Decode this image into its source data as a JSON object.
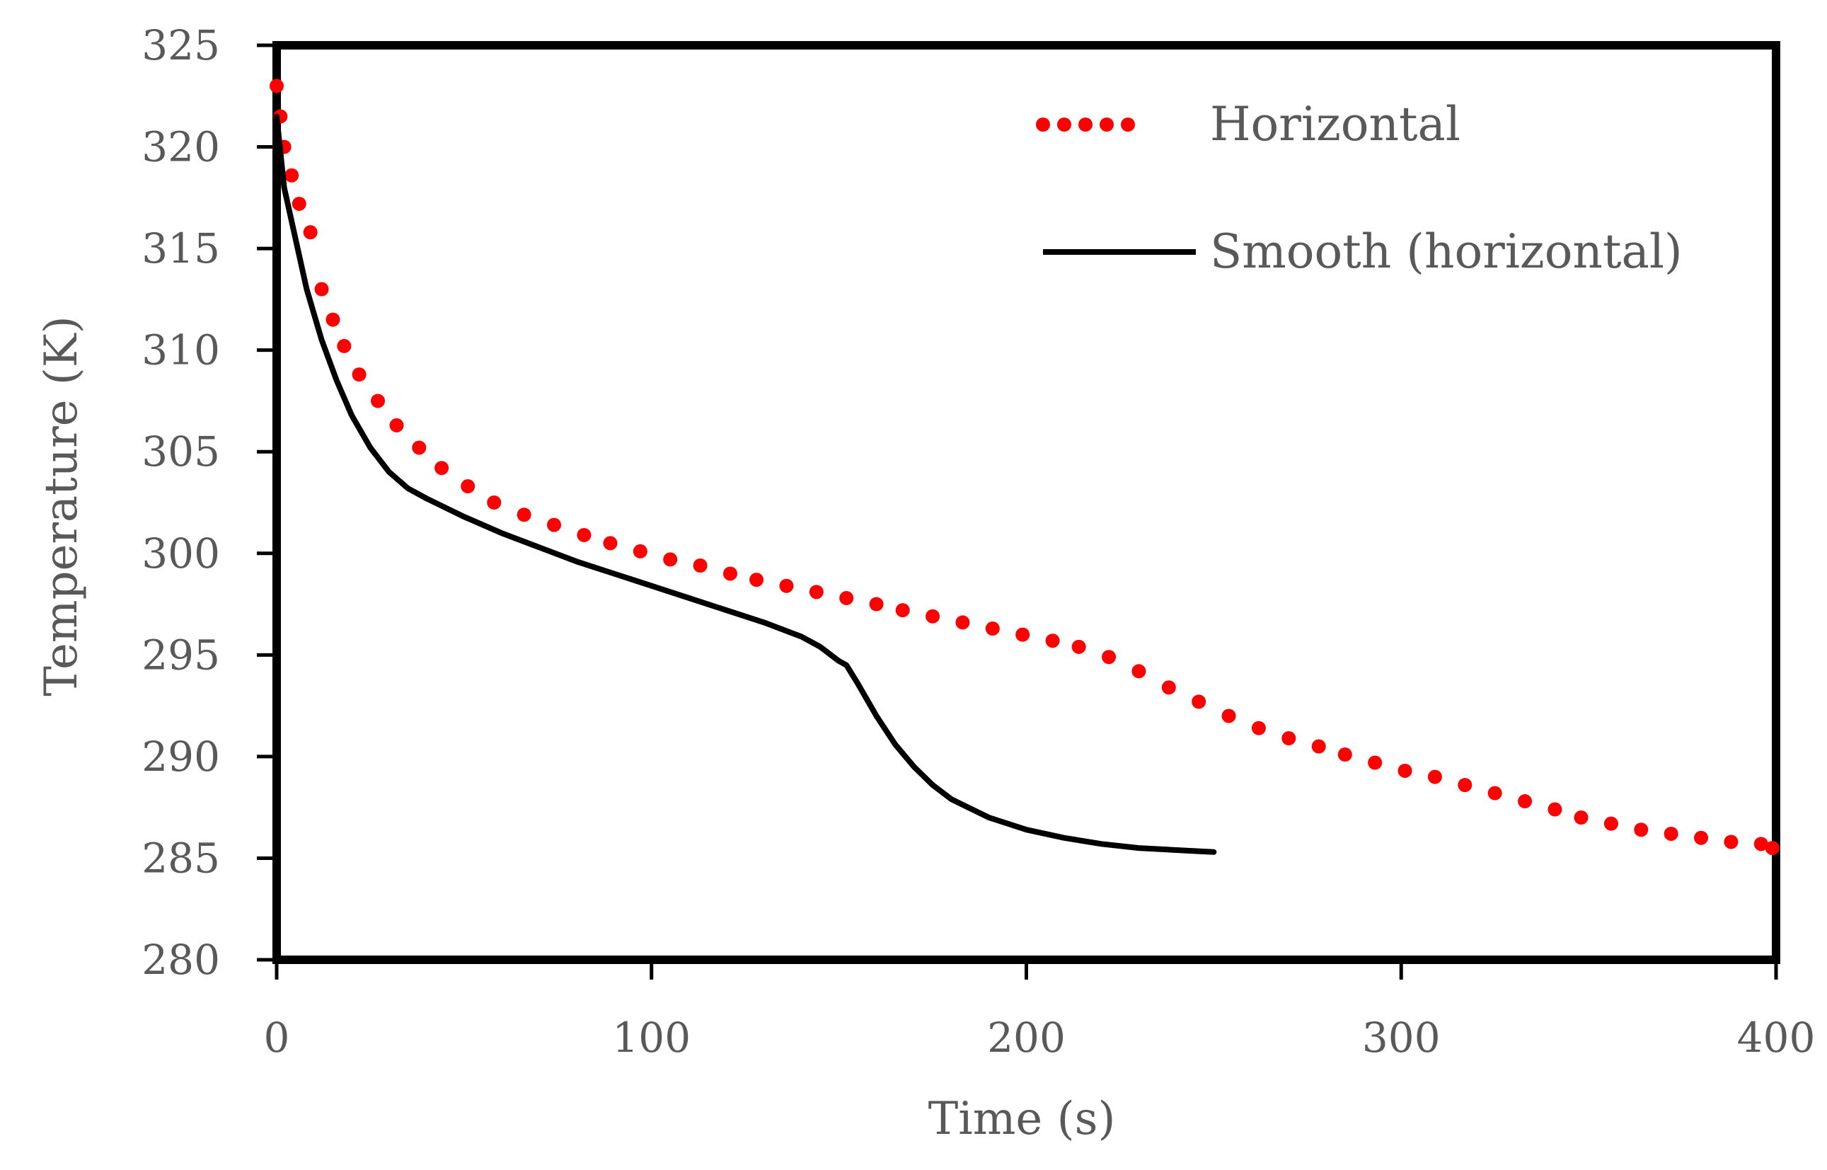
{
  "chart_data": {
    "type": "line",
    "title": "",
    "xlabel": "Time (s)",
    "ylabel": "Temperature (K)",
    "xlim": [
      0,
      400
    ],
    "ylim": [
      280,
      325
    ],
    "xticks": [
      0,
      100,
      200,
      300,
      400
    ],
    "yticks": [
      280,
      285,
      290,
      295,
      300,
      305,
      310,
      315,
      320,
      325
    ],
    "grid": false,
    "legend_position": "top-right",
    "series": [
      {
        "name": "Horizontal",
        "style": "dotted",
        "color": "#ff0000",
        "x": [
          0,
          1,
          2,
          4,
          6,
          9,
          12,
          15,
          18,
          22,
          27,
          32,
          38,
          44,
          51,
          58,
          66,
          74,
          82,
          89,
          97,
          105,
          113,
          121,
          128,
          136,
          144,
          152,
          160,
          167,
          175,
          183,
          191,
          199,
          207,
          214,
          222,
          230,
          238,
          246,
          254,
          262,
          270,
          278,
          285,
          293,
          301,
          309,
          317,
          325,
          333,
          341,
          348,
          356,
          364,
          372,
          380,
          388,
          396,
          399
        ],
        "y": [
          323.0,
          321.5,
          320.0,
          318.6,
          317.2,
          315.8,
          313.0,
          311.5,
          310.2,
          308.8,
          307.5,
          306.3,
          305.2,
          304.2,
          303.3,
          302.5,
          301.9,
          301.4,
          300.9,
          300.5,
          300.1,
          299.7,
          299.4,
          299.0,
          298.7,
          298.4,
          298.1,
          297.8,
          297.5,
          297.2,
          296.9,
          296.6,
          296.3,
          296.0,
          295.7,
          295.4,
          294.9,
          294.2,
          293.4,
          292.7,
          292.0,
          291.4,
          290.9,
          290.5,
          290.1,
          289.7,
          289.3,
          289.0,
          288.6,
          288.2,
          287.8,
          287.4,
          287.0,
          286.7,
          286.4,
          286.2,
          286.0,
          285.8,
          285.7,
          285.5
        ]
      },
      {
        "name": "Smooth (horizontal)",
        "style": "solid",
        "color": "#000000",
        "x": [
          0,
          2,
          5,
          8,
          12,
          16,
          20,
          25,
          30,
          35,
          40,
          50,
          60,
          70,
          80,
          90,
          100,
          110,
          120,
          130,
          140,
          145,
          150,
          152,
          155,
          160,
          165,
          170,
          175,
          180,
          190,
          200,
          210,
          220,
          230,
          240,
          250
        ],
        "y": [
          321.5,
          318.0,
          315.5,
          313.0,
          310.5,
          308.5,
          306.8,
          305.2,
          304.0,
          303.2,
          302.7,
          301.8,
          301.0,
          300.3,
          299.6,
          299.0,
          298.4,
          297.8,
          297.2,
          296.6,
          295.9,
          295.4,
          294.7,
          294.5,
          293.6,
          292.0,
          290.6,
          289.5,
          288.6,
          287.9,
          287.0,
          286.4,
          286.0,
          285.7,
          285.5,
          285.4,
          285.3
        ]
      }
    ]
  }
}
